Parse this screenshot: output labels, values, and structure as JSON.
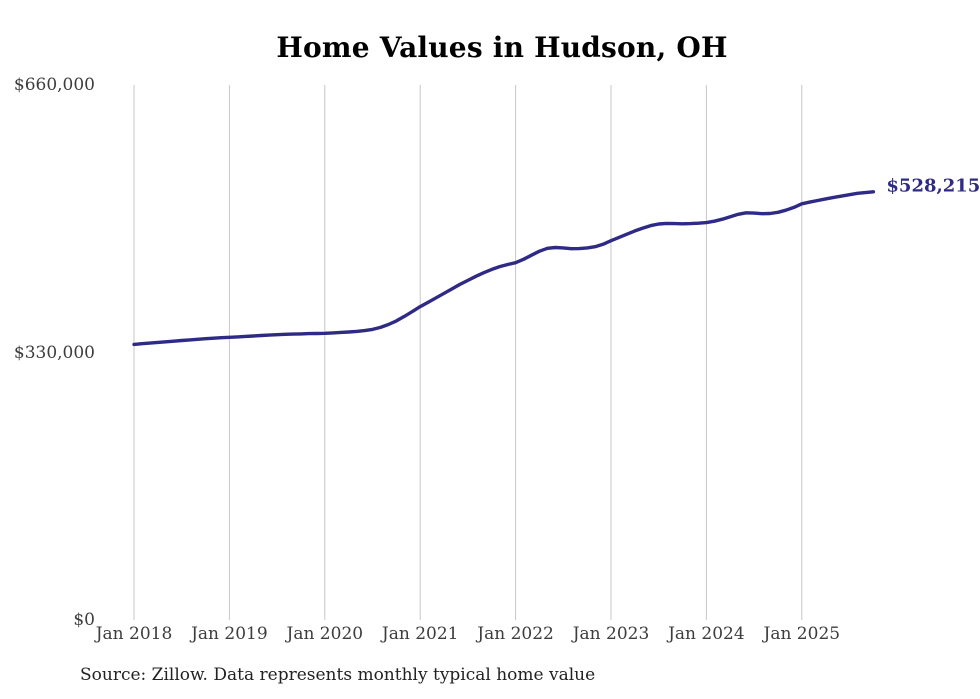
{
  "title": "Home Values in Hudson, OH",
  "source_note": "Source: Zillow. Data represents monthly typical home value",
  "end_label": "$528,215",
  "colors": {
    "line": "#2e2a85",
    "end_label": "#2e2a85",
    "gridline": "#c7c7c7",
    "axis_text": "#3d3d3d",
    "title_text": "#000000",
    "source_text": "#222222",
    "background": "#ffffff"
  },
  "axis": {
    "y_ticks": [
      {
        "label": "$660,000",
        "value": 660000
      },
      {
        "label": "$330,000",
        "value": 330000
      },
      {
        "label": "$0",
        "value": 0
      }
    ],
    "x_ticks": [
      "Jan 2018",
      "Jan 2019",
      "Jan 2020",
      "Jan 2021",
      "Jan 2022",
      "Jan 2023",
      "Jan 2024",
      "Jan 2025"
    ]
  },
  "chart_data": {
    "type": "line",
    "title": "Home Values in Hudson, OH",
    "series_name": "Monthly typical home value (Zillow)",
    "ylabel": "",
    "xlabel": "",
    "ylim": [
      0,
      660000
    ],
    "grid": "vertical-only",
    "legend": "none",
    "end_annotation": "$528,215",
    "x": [
      "2018-01",
      "2018-02",
      "2018-03",
      "2018-04",
      "2018-05",
      "2018-06",
      "2018-07",
      "2018-08",
      "2018-09",
      "2018-10",
      "2018-11",
      "2018-12",
      "2019-01",
      "2019-02",
      "2019-03",
      "2019-04",
      "2019-05",
      "2019-06",
      "2019-07",
      "2019-08",
      "2019-09",
      "2019-10",
      "2019-11",
      "2019-12",
      "2020-01",
      "2020-02",
      "2020-03",
      "2020-04",
      "2020-05",
      "2020-06",
      "2020-07",
      "2020-08",
      "2020-09",
      "2020-10",
      "2020-11",
      "2020-12",
      "2021-01",
      "2021-02",
      "2021-03",
      "2021-04",
      "2021-05",
      "2021-06",
      "2021-07",
      "2021-08",
      "2021-09",
      "2021-10",
      "2021-11",
      "2021-12",
      "2022-01",
      "2022-02",
      "2022-03",
      "2022-04",
      "2022-05",
      "2022-06",
      "2022-07",
      "2022-08",
      "2022-09",
      "2022-10",
      "2022-11",
      "2022-12",
      "2023-01",
      "2023-02",
      "2023-03",
      "2023-04",
      "2023-05",
      "2023-06",
      "2023-07",
      "2023-08",
      "2023-09",
      "2023-10",
      "2023-11",
      "2023-12",
      "2024-01",
      "2024-02",
      "2024-03",
      "2024-04",
      "2024-05",
      "2024-06",
      "2024-07",
      "2024-08",
      "2024-09",
      "2024-10",
      "2024-11",
      "2024-12",
      "2025-01",
      "2025-02",
      "2025-03",
      "2025-04",
      "2025-05",
      "2025-06",
      "2025-07",
      "2025-08",
      "2025-09",
      "2025-10"
    ],
    "values": [
      340000,
      340800,
      341600,
      342400,
      343200,
      344000,
      344800,
      345600,
      346300,
      347000,
      347700,
      348300,
      348800,
      349300,
      349800,
      350400,
      351000,
      351500,
      352000,
      352400,
      352700,
      353000,
      353300,
      353500,
      353700,
      354200,
      354800,
      355300,
      356000,
      357000,
      358500,
      361000,
      364500,
      369000,
      374500,
      380500,
      386600,
      392000,
      397500,
      403000,
      408500,
      414000,
      419000,
      424000,
      428500,
      432500,
      436000,
      438500,
      440800,
      445000,
      450000,
      455000,
      458500,
      459500,
      459000,
      458000,
      458200,
      459000,
      460500,
      463500,
      467900,
      472000,
      476000,
      480000,
      483500,
      486500,
      488500,
      489300,
      489000,
      488800,
      489000,
      489500,
      490300,
      492000,
      494500,
      497500,
      500500,
      502400,
      502000,
      501200,
      501500,
      503000,
      505500,
      509000,
      513400,
      515500,
      517500,
      519500,
      521300,
      523000,
      524700,
      526400,
      527300,
      528215
    ],
    "x_gridline_month_indices": [
      0,
      12,
      24,
      36,
      48,
      60,
      72,
      84
    ]
  }
}
